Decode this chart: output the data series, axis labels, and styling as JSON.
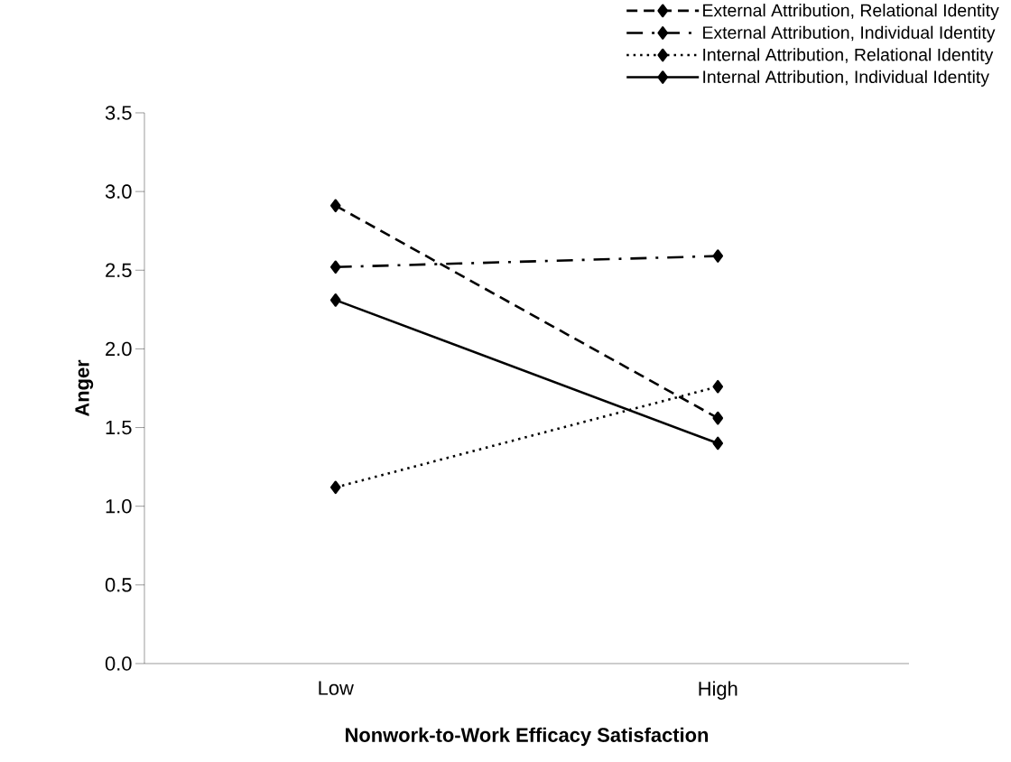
{
  "chart_data": {
    "type": "line",
    "xlabel": "Nonwork-to-Work Efficacy Satisfaction",
    "ylabel": "Anger",
    "categories": [
      "Low",
      "High"
    ],
    "series": [
      {
        "name": "External Attribution, Relational Identity",
        "color": "#000000",
        "line_style": "dashed",
        "values": [
          2.91,
          1.56
        ]
      },
      {
        "name": "External Attribution, Individual Identity",
        "color": "#000000",
        "line_style": "dashdot",
        "values": [
          2.52,
          2.59
        ]
      },
      {
        "name": "Internal Attribution, Relational Identity",
        "color": "#000000",
        "line_style": "dotted",
        "values": [
          1.12,
          1.76
        ]
      },
      {
        "name": "Internal Attribution, Individual Identity",
        "color": "#000000",
        "line_style": "solid",
        "values": [
          2.31,
          1.4
        ]
      }
    ],
    "ylim": [
      0,
      3.5
    ],
    "yticks": [
      {
        "value": 0,
        "label": "0.0"
      },
      {
        "value": 0.5,
        "label": "0.5"
      },
      {
        "value": 1,
        "label": "1.0"
      },
      {
        "value": 1.5,
        "label": "1.5"
      },
      {
        "value": 2,
        "label": "2.0"
      },
      {
        "value": 2.5,
        "label": "2.5"
      },
      {
        "value": 3,
        "label": "3.0"
      },
      {
        "value": 3.5,
        "label": "3.5"
      }
    ],
    "marker": "diamond",
    "legend": "top right",
    "grid": false
  }
}
